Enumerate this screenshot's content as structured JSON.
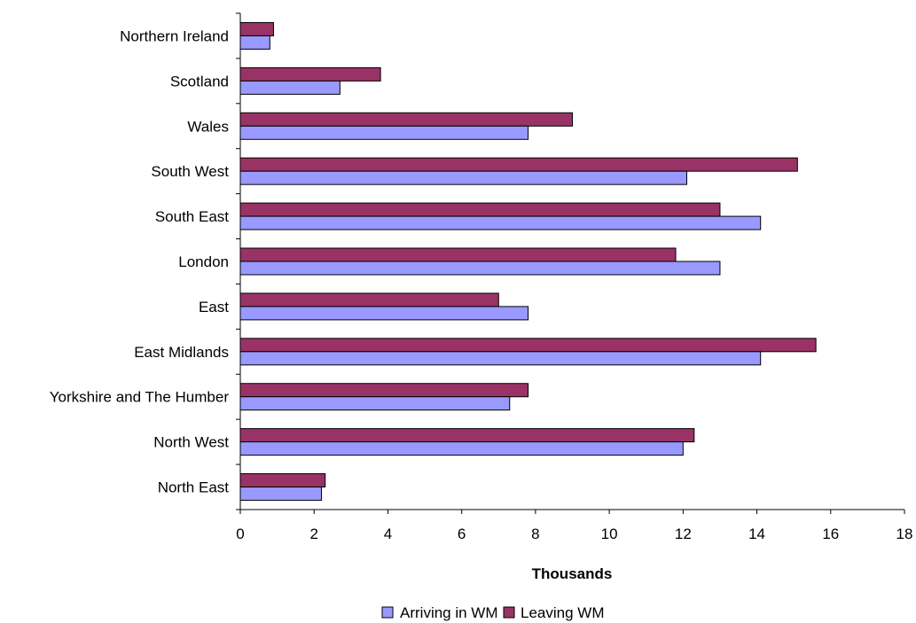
{
  "colors": {
    "arriving": "#9999ff",
    "leaving": "#993366",
    "axis": "#000000"
  },
  "chart_data": {
    "type": "bar",
    "orientation": "horizontal",
    "categories": [
      "North East",
      "North West",
      "Yorkshire and The Humber",
      "East Midlands",
      "East",
      "London",
      "South East",
      "South West",
      "Wales",
      "Scotland",
      "Northern Ireland"
    ],
    "series": [
      {
        "name": "Arriving in WM",
        "values": [
          2.2,
          12.0,
          7.3,
          14.1,
          7.8,
          13.0,
          14.1,
          12.1,
          7.8,
          2.7,
          0.8
        ]
      },
      {
        "name": "Leaving WM",
        "values": [
          2.3,
          12.3,
          7.8,
          15.6,
          7.0,
          11.8,
          13.0,
          15.1,
          9.0,
          3.8,
          0.9
        ]
      }
    ],
    "title": "",
    "xlabel": "Thousands",
    "ylabel": "",
    "xlim": [
      0,
      18
    ],
    "xticks": [
      "0",
      "2",
      "4",
      "6",
      "8",
      "10",
      "12",
      "14",
      "16",
      "18"
    ],
    "grid": false,
    "legend_position": "bottom"
  }
}
